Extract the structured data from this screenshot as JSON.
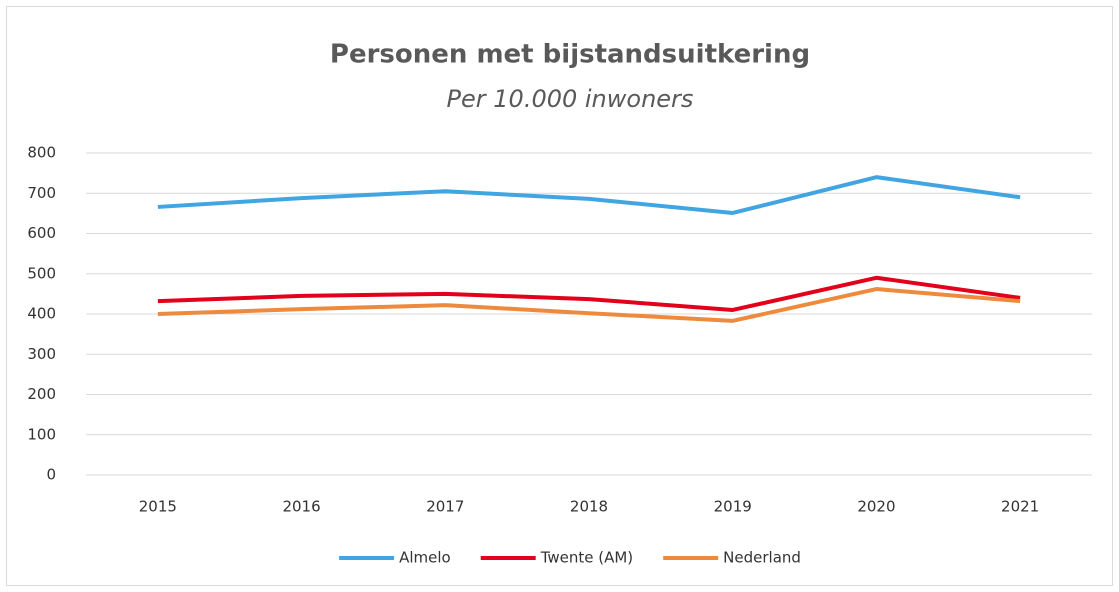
{
  "chart_data": {
    "type": "line",
    "title": "Personen met bijstandsuitkering",
    "subtitle": "Per 10.000 inwoners",
    "categories": [
      "2015",
      "2016",
      "2017",
      "2018",
      "2019",
      "2020",
      "2021"
    ],
    "series": [
      {
        "name": "Almelo",
        "color": "#41a5e1",
        "values": [
          666,
          688,
          705,
          686,
          651,
          740,
          690
        ]
      },
      {
        "name": "Twente (AM)",
        "color": "#e3001b",
        "values": [
          432,
          445,
          450,
          437,
          410,
          490,
          440
        ]
      },
      {
        "name": "Nederland",
        "color": "#ee8a3d",
        "values": [
          400,
          412,
          422,
          402,
          383,
          462,
          432
        ]
      }
    ],
    "ylim": [
      0,
      800
    ],
    "yticks": [
      0,
      100,
      200,
      300,
      400,
      500,
      600,
      700,
      800
    ],
    "grid": true,
    "legend": "bottom"
  }
}
